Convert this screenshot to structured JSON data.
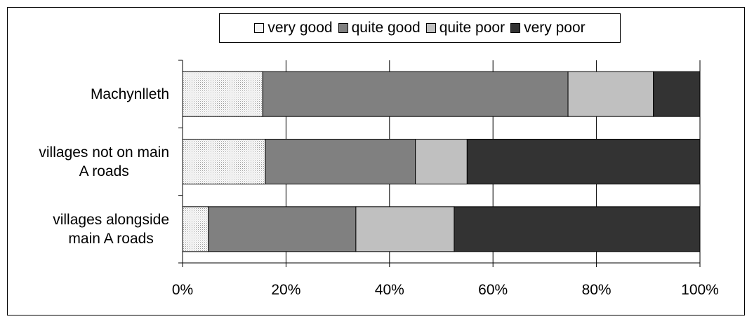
{
  "chart_data": {
    "type": "bar",
    "orientation": "horizontal",
    "stacked": "percent",
    "categories": [
      "Machynlleth",
      "villages not on main A roads",
      "villages alongside main A roads"
    ],
    "category_label_lines": [
      [
        "Machynlleth"
      ],
      [
        "villages not on main",
        "A roads"
      ],
      [
        "villages alongside",
        "main A roads"
      ]
    ],
    "series": [
      {
        "name": "very good",
        "values": [
          15.5,
          16,
          5
        ],
        "color": "#eeeeee"
      },
      {
        "name": "quite good",
        "values": [
          59,
          29,
          28.5
        ],
        "color": "#808080"
      },
      {
        "name": "quite poor",
        "values": [
          16.5,
          10,
          19
        ],
        "color": "#c0c0c0"
      },
      {
        "name": "very poor",
        "values": [
          9,
          45,
          47.5
        ],
        "color": "#333333"
      }
    ],
    "xlim": [
      0,
      100
    ],
    "xticks": [
      "0%",
      "20%",
      "40%",
      "60%",
      "80%",
      "100%"
    ],
    "grid": true,
    "legend_position": "top"
  }
}
